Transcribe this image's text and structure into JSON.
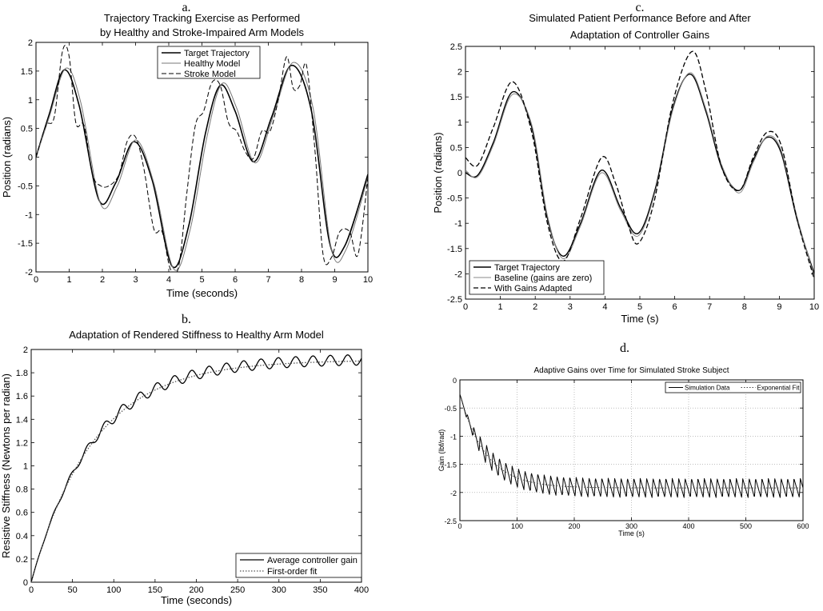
{
  "chart_data": [
    {
      "letter": "a.",
      "type": "line",
      "title": [
        "Trajectory Tracking Exercise as Performed",
        "by Healthy and Stroke-Impaired Arm Models"
      ],
      "xlabel": "Time (seconds)",
      "ylabel": "Position (radians)",
      "xlim": [
        0,
        10
      ],
      "ylim": [
        -2,
        2
      ],
      "xticks": [
        0,
        1,
        2,
        3,
        4,
        5,
        6,
        7,
        8,
        9,
        10
      ],
      "yticks": [
        -2,
        -1.5,
        -1,
        -0.5,
        0,
        0.5,
        1,
        1.5,
        2
      ],
      "grid": false,
      "legend_position": "top-right",
      "series": [
        {
          "name": "Target Trajectory",
          "style": "solid",
          "color": "#000000",
          "width": 1.6,
          "x": [
            0,
            0.4,
            0.85,
            1.3,
            1.9,
            2.4,
            2.95,
            3.5,
            4.1,
            4.6,
            5.1,
            5.55,
            6.0,
            6.55,
            7.1,
            7.7,
            8.3,
            8.85,
            9.3,
            10
          ],
          "y": [
            0,
            0.75,
            1.52,
            0.9,
            -0.75,
            -0.45,
            0.27,
            -0.4,
            -1.9,
            -1.2,
            0.4,
            1.25,
            0.8,
            -0.08,
            0.7,
            1.6,
            0.8,
            -1.5,
            -1.55,
            -0.3
          ]
        },
        {
          "name": "Healthy Model",
          "style": "solid",
          "color": "#777777",
          "width": 1,
          "x": [
            0,
            0.4,
            0.9,
            1.35,
            1.95,
            2.45,
            3.0,
            3.55,
            4.15,
            4.65,
            5.15,
            5.6,
            6.05,
            6.6,
            7.15,
            7.75,
            8.35,
            8.9,
            9.35,
            10
          ],
          "y": [
            0,
            0.7,
            1.55,
            0.95,
            -0.82,
            -0.5,
            0.3,
            -0.45,
            -1.95,
            -1.25,
            0.35,
            1.28,
            0.85,
            -0.1,
            0.72,
            1.65,
            0.85,
            -1.6,
            -1.6,
            -0.35
          ]
        },
        {
          "name": "Stroke Model",
          "style": "dashed",
          "color": "#000000",
          "width": 1,
          "x": [
            0,
            0.3,
            0.55,
            0.8,
            1.0,
            1.2,
            1.45,
            1.7,
            1.95,
            2.2,
            2.5,
            2.75,
            3.0,
            3.25,
            3.55,
            3.8,
            4.05,
            4.3,
            4.55,
            4.8,
            5.05,
            5.3,
            5.55,
            5.8,
            6.05,
            6.3,
            6.55,
            6.8,
            7.05,
            7.3,
            7.55,
            7.75,
            7.95,
            8.15,
            8.4,
            8.65,
            8.9,
            9.15,
            9.45,
            9.7,
            10
          ],
          "y": [
            0,
            0.55,
            0.7,
            1.85,
            1.75,
            0.6,
            0.55,
            -0.3,
            -0.5,
            -0.5,
            -0.3,
            0.28,
            0.35,
            -0.2,
            -1.25,
            -1.3,
            -1.95,
            -1.9,
            -0.6,
            0.55,
            0.8,
            1.3,
            1.25,
            0.6,
            0.45,
            0.1,
            -0.02,
            0.45,
            0.45,
            1.0,
            1.75,
            1.2,
            1.25,
            1.6,
            0.15,
            -1.7,
            -1.75,
            -1.3,
            -1.3,
            -1.7,
            -0.35
          ]
        }
      ]
    },
    {
      "letter": "b.",
      "type": "line",
      "title": [
        "Adaptation of Rendered Stiffness to Healthy Arm Model"
      ],
      "xlabel": "Time (seconds)",
      "ylabel": "Resistive Stiffness (Newtons per radian)",
      "xlim": [
        0,
        400
      ],
      "ylim": [
        0,
        2
      ],
      "xticks": [
        0,
        50,
        100,
        150,
        200,
        250,
        300,
        350,
        400
      ],
      "yticks": [
        0,
        0.2,
        0.4,
        0.6,
        0.8,
        1,
        1.2,
        1.4,
        1.6,
        1.8,
        2
      ],
      "grid": false,
      "legend_position": "bottom-right",
      "series": [
        {
          "name": "Average controller gain",
          "style": "solid",
          "color": "#000000",
          "width": 1.3,
          "generator": {
            "kind": "exp_osc",
            "a": 1.92,
            "tau": 75,
            "amp": 0.045,
            "period": 21,
            "phase": 0
          }
        },
        {
          "name": "First-order fit",
          "style": "dotted",
          "color": "#555555",
          "width": 1.3,
          "generator": {
            "kind": "exp_osc",
            "a": 1.91,
            "tau": 75,
            "amp": 0,
            "period": 20,
            "phase": 0
          }
        }
      ]
    },
    {
      "letter": "c.",
      "type": "line",
      "title": [
        "Simulated Patient Performance Before and After",
        "Adaptation of Controller Gains"
      ],
      "xlabel": "Time (s)",
      "ylabel": "Position (radians)",
      "xlim": [
        0,
        10
      ],
      "ylim": [
        -2.5,
        2.5
      ],
      "xticks": [
        0,
        1,
        2,
        3,
        4,
        5,
        6,
        7,
        8,
        9,
        10
      ],
      "yticks": [
        -2.5,
        -2,
        -1.5,
        -1,
        -0.5,
        0,
        0.5,
        1,
        1.5,
        2,
        2.5
      ],
      "grid": false,
      "legend_position": "bottom-left",
      "series": [
        {
          "name": "Target Trajectory",
          "style": "solid",
          "color": "#000000",
          "width": 1.4,
          "x": [
            0,
            0.35,
            0.8,
            1.35,
            1.9,
            2.35,
            2.8,
            3.3,
            3.9,
            4.45,
            4.95,
            5.45,
            5.95,
            6.45,
            6.9,
            7.35,
            7.85,
            8.25,
            8.65,
            9.05,
            9.5,
            10
          ],
          "y": [
            0,
            -0.05,
            0.6,
            1.6,
            0.9,
            -0.9,
            -1.65,
            -1.0,
            0.05,
            -0.7,
            -1.2,
            -0.3,
            1.3,
            1.95,
            1.2,
            0.1,
            -0.35,
            0.25,
            0.7,
            0.4,
            -0.9,
            -2.0
          ]
        },
        {
          "name": "Baseline (gains are zero)",
          "style": "solid",
          "color": "#888888",
          "width": 1,
          "x": [
            0,
            0.35,
            0.8,
            1.35,
            1.9,
            2.35,
            2.8,
            3.3,
            3.9,
            4.45,
            4.95,
            5.45,
            5.95,
            6.45,
            6.9,
            7.35,
            7.85,
            8.25,
            8.65,
            9.05,
            9.5,
            10
          ],
          "y": [
            0.05,
            -0.08,
            0.55,
            1.55,
            0.95,
            -0.85,
            -1.7,
            -1.05,
            0.0,
            -0.75,
            -1.25,
            -0.35,
            1.25,
            1.98,
            1.25,
            0.15,
            -0.4,
            0.2,
            0.72,
            0.45,
            -0.85,
            -2.05
          ]
        },
        {
          "name": "With Gains Adapted",
          "style": "dashed",
          "color": "#000000",
          "width": 1.3,
          "x": [
            0,
            0.35,
            0.8,
            1.35,
            1.9,
            2.35,
            2.8,
            3.3,
            3.9,
            4.3,
            4.65,
            4.95,
            5.4,
            5.95,
            6.5,
            6.9,
            7.35,
            7.85,
            8.25,
            8.65,
            9.05,
            9.5,
            10
          ],
          "y": [
            0.3,
            0.15,
            0.9,
            1.8,
            0.8,
            -1.0,
            -1.75,
            -0.9,
            0.3,
            -0.2,
            -1.0,
            -1.4,
            -0.6,
            1.4,
            2.4,
            1.6,
            0.1,
            -0.35,
            0.3,
            0.8,
            0.55,
            -0.9,
            -2.1
          ]
        }
      ]
    },
    {
      "letter": "d.",
      "type": "line",
      "title": [
        "Adaptive Gains over Time for Simulated Stroke Subject"
      ],
      "xlabel": "Time (s)",
      "ylabel": "Gain (lbf/rad)",
      "xlim": [
        0,
        600
      ],
      "ylim": [
        -2.5,
        0
      ],
      "xticks": [
        0,
        100,
        200,
        300,
        400,
        500,
        600
      ],
      "yticks": [
        -2.5,
        -2,
        -1.5,
        -1,
        -0.5,
        0
      ],
      "grid": true,
      "legend_position": "top-right",
      "series": [
        {
          "name": "Simulation Data",
          "style": "solid",
          "color": "#000000",
          "width": 1,
          "generator": {
            "kind": "exp_decay_osc",
            "a": -1.92,
            "b": 0.25,
            "tau": 45,
            "amp": 0.17,
            "period": 11.2,
            "phase": 0
          }
        },
        {
          "name": "Exponential Fit",
          "style": "dotted",
          "color": "#444444",
          "width": 1,
          "generator": {
            "kind": "exp_decay_osc",
            "a": -1.92,
            "b": 0.25,
            "tau": 45,
            "amp": 0,
            "period": 11.2,
            "phase": 0
          }
        }
      ]
    }
  ]
}
